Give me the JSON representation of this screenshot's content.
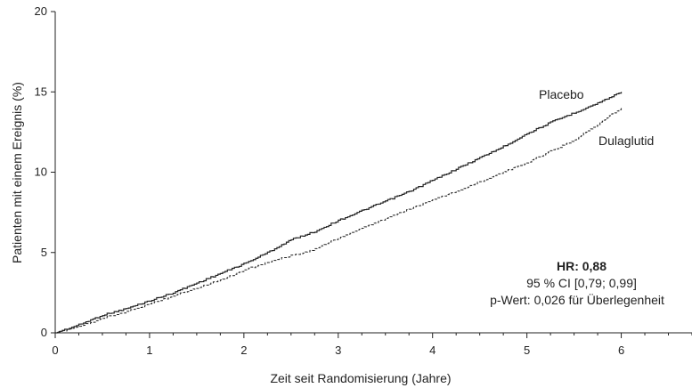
{
  "chart_data": {
    "type": "line",
    "xlabel": "Zeit seit Randomisierung (Jahre)",
    "ylabel": "Patienten mit einem Ereignis (%)",
    "xlim": [
      0,
      6.75
    ],
    "ylim": [
      0,
      20
    ],
    "x_ticks": [
      0,
      1,
      2,
      3,
      4,
      5,
      6
    ],
    "x_minor_step": 0.25,
    "y_ticks": [
      0,
      5,
      10,
      15,
      20
    ],
    "grid": false,
    "series": [
      {
        "name": "Placebo",
        "style": "solid",
        "color": "#222222",
        "x": [
          0,
          0.25,
          0.5,
          0.75,
          1,
          1.25,
          1.5,
          1.75,
          2,
          2.25,
          2.5,
          2.75,
          3,
          3.25,
          3.5,
          3.75,
          4,
          4.25,
          4.5,
          4.75,
          5,
          5.25,
          5.5,
          5.75,
          6
        ],
        "y": [
          0,
          0.5,
          1.1,
          1.5,
          2.0,
          2.5,
          3.1,
          3.7,
          4.3,
          5.0,
          5.8,
          6.3,
          7.0,
          7.6,
          8.2,
          8.8,
          9.5,
          10.2,
          10.9,
          11.6,
          12.4,
          13.1,
          13.7,
          14.3,
          15.0
        ]
      },
      {
        "name": "Dulaglutid",
        "style": "dashed",
        "color": "#222222",
        "x": [
          0,
          0.25,
          0.5,
          0.75,
          1,
          1.25,
          1.5,
          1.75,
          2,
          2.25,
          2.5,
          2.75,
          3,
          3.25,
          3.5,
          3.75,
          4,
          4.25,
          4.5,
          4.75,
          5,
          5.25,
          5.5,
          5.75,
          6
        ],
        "y": [
          0,
          0.4,
          0.9,
          1.3,
          1.8,
          2.3,
          2.8,
          3.3,
          3.9,
          4.4,
          4.8,
          5.2,
          5.9,
          6.5,
          7.1,
          7.7,
          8.3,
          8.8,
          9.4,
          10.0,
          10.6,
          11.3,
          12.0,
          13.0,
          14.0
        ]
      }
    ],
    "annotations": {
      "hr": "HR: 0,88",
      "ci": "95 % CI [0,79; 0,99]",
      "p_value": "p-Wert: 0,026 für Überlegenheit"
    }
  }
}
